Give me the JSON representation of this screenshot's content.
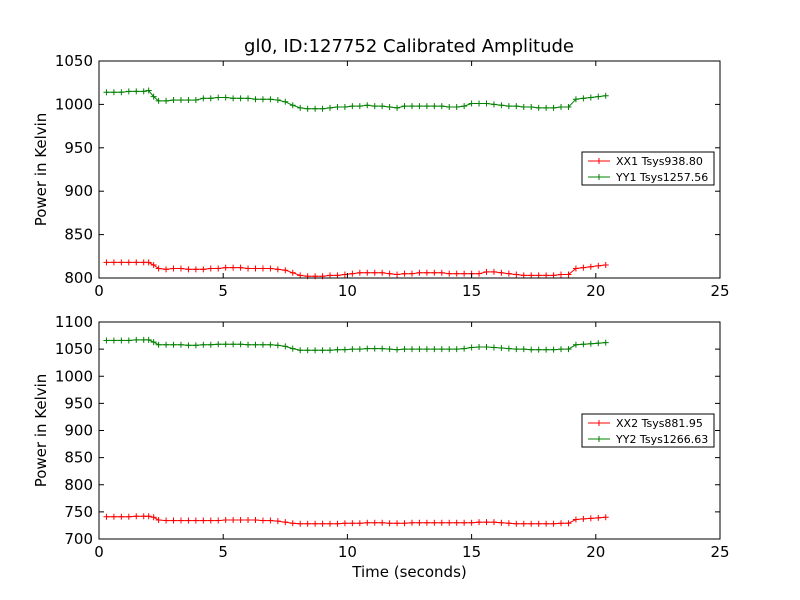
{
  "figure": {
    "title": "gl0, ID:127752 Calibrated Amplitude"
  },
  "chart_data": [
    {
      "type": "line",
      "title": "gl0, ID:127752 Calibrated Amplitude",
      "xlabel": "",
      "ylabel": "Power in Kelvin",
      "xlim": [
        0,
        25
      ],
      "ylim": [
        800,
        1050
      ],
      "xticks": [
        0,
        5,
        10,
        15,
        20,
        25
      ],
      "yticks": [
        800,
        850,
        900,
        950,
        1000,
        1050
      ],
      "legend": "center-right",
      "grid": false,
      "x": [
        0.3,
        0.6,
        0.9,
        1.2,
        1.5,
        1.8,
        2.0,
        2.2,
        2.4,
        2.7,
        3.0,
        3.3,
        3.6,
        3.9,
        4.2,
        4.5,
        4.8,
        5.1,
        5.4,
        5.7,
        6.0,
        6.3,
        6.6,
        6.9,
        7.2,
        7.5,
        7.8,
        8.1,
        8.4,
        8.7,
        9.0,
        9.3,
        9.6,
        9.9,
        10.2,
        10.5,
        10.8,
        11.1,
        11.4,
        11.7,
        12.0,
        12.3,
        12.6,
        12.9,
        13.2,
        13.5,
        13.8,
        14.1,
        14.4,
        14.7,
        15.0,
        15.3,
        15.6,
        15.9,
        16.2,
        16.5,
        16.8,
        17.1,
        17.4,
        17.7,
        18.0,
        18.3,
        18.6,
        18.9,
        19.2,
        19.5,
        19.8,
        20.1,
        20.4
      ],
      "series": [
        {
          "name": "XX1 Tsys938.80",
          "color": "#ff0000",
          "values": [
            818,
            818,
            818,
            818,
            818,
            818,
            818,
            815,
            811,
            810,
            811,
            811,
            810,
            810,
            810,
            811,
            811,
            812,
            812,
            812,
            811,
            811,
            811,
            811,
            810,
            809,
            806,
            803,
            802,
            802,
            802,
            803,
            803,
            804,
            805,
            806,
            806,
            806,
            806,
            805,
            804,
            805,
            805,
            806,
            806,
            806,
            806,
            805,
            805,
            805,
            805,
            805,
            807,
            807,
            806,
            805,
            804,
            803,
            803,
            803,
            803,
            803,
            804,
            804,
            811,
            812,
            813,
            814,
            815
          ]
        },
        {
          "name": "YY1 Tsys1257.56",
          "color": "#008000",
          "values": [
            1014,
            1014,
            1014,
            1015,
            1015,
            1015,
            1016,
            1009,
            1004,
            1004,
            1005,
            1005,
            1005,
            1005,
            1007,
            1007,
            1008,
            1008,
            1007,
            1007,
            1007,
            1006,
            1006,
            1006,
            1005,
            1003,
            999,
            996,
            995,
            995,
            995,
            996,
            997,
            997,
            998,
            998,
            999,
            998,
            998,
            997,
            996,
            998,
            998,
            998,
            998,
            998,
            998,
            997,
            997,
            998,
            1001,
            1001,
            1001,
            1000,
            999,
            998,
            998,
            997,
            997,
            996,
            996,
            996,
            997,
            997,
            1006,
            1007,
            1008,
            1009,
            1010
          ]
        }
      ]
    },
    {
      "type": "line",
      "title": "",
      "xlabel": "Time (seconds)",
      "ylabel": "Power in Kelvin",
      "xlim": [
        0,
        25
      ],
      "ylim": [
        700,
        1100
      ],
      "xticks": [
        0,
        5,
        10,
        15,
        20,
        25
      ],
      "yticks": [
        700,
        750,
        800,
        850,
        900,
        950,
        1000,
        1050,
        1100
      ],
      "legend": "center-right",
      "grid": false,
      "x": [
        0.3,
        0.6,
        0.9,
        1.2,
        1.5,
        1.8,
        2.0,
        2.2,
        2.4,
        2.7,
        3.0,
        3.3,
        3.6,
        3.9,
        4.2,
        4.5,
        4.8,
        5.1,
        5.4,
        5.7,
        6.0,
        6.3,
        6.6,
        6.9,
        7.2,
        7.5,
        7.8,
        8.1,
        8.4,
        8.7,
        9.0,
        9.3,
        9.6,
        9.9,
        10.2,
        10.5,
        10.8,
        11.1,
        11.4,
        11.7,
        12.0,
        12.3,
        12.6,
        12.9,
        13.2,
        13.5,
        13.8,
        14.1,
        14.4,
        14.7,
        15.0,
        15.3,
        15.6,
        15.9,
        16.2,
        16.5,
        16.8,
        17.1,
        17.4,
        17.7,
        18.0,
        18.3,
        18.6,
        18.9,
        19.2,
        19.5,
        19.8,
        20.1,
        20.4
      ],
      "series": [
        {
          "name": "XX2 Tsys881.95",
          "color": "#ff0000",
          "values": [
            741,
            741,
            741,
            741,
            742,
            742,
            742,
            740,
            735,
            734,
            734,
            734,
            734,
            734,
            734,
            734,
            734,
            735,
            735,
            735,
            735,
            735,
            734,
            734,
            733,
            731,
            729,
            728,
            728,
            728,
            728,
            728,
            728,
            729,
            729,
            729,
            730,
            730,
            730,
            729,
            729,
            729,
            730,
            730,
            730,
            730,
            730,
            730,
            730,
            730,
            730,
            731,
            731,
            731,
            730,
            729,
            728,
            728,
            728,
            728,
            728,
            728,
            729,
            729,
            736,
            737,
            738,
            739,
            740
          ]
        },
        {
          "name": "YY2 Tsys1266.63",
          "color": "#008000",
          "values": [
            1066,
            1066,
            1066,
            1066,
            1067,
            1067,
            1067,
            1063,
            1058,
            1058,
            1058,
            1058,
            1057,
            1057,
            1058,
            1058,
            1059,
            1059,
            1059,
            1059,
            1058,
            1058,
            1058,
            1058,
            1057,
            1055,
            1051,
            1048,
            1048,
            1048,
            1048,
            1048,
            1049,
            1049,
            1050,
            1050,
            1051,
            1051,
            1051,
            1050,
            1049,
            1050,
            1050,
            1050,
            1050,
            1050,
            1050,
            1050,
            1050,
            1051,
            1053,
            1054,
            1054,
            1053,
            1052,
            1051,
            1050,
            1050,
            1049,
            1049,
            1049,
            1049,
            1050,
            1050,
            1058,
            1059,
            1060,
            1061,
            1062
          ]
        }
      ]
    }
  ]
}
